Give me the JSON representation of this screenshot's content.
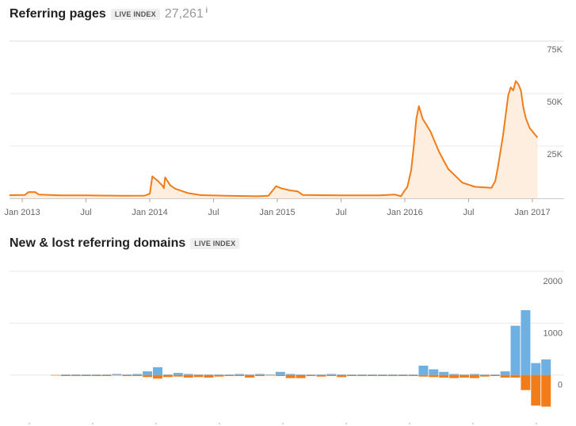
{
  "header1": {
    "title": "Referring pages",
    "badge": "LIVE INDEX",
    "count": "27,261",
    "info": "i"
  },
  "header2": {
    "title": "New & lost referring domains",
    "badge": "LIVE INDEX"
  },
  "colors": {
    "line": "#f07c1a",
    "area": "#fdeee0",
    "new": "#6fb0e3",
    "lost": "#f07c1a",
    "grid": "#e8e8e8",
    "tick": "#666666"
  },
  "chart_data": [
    {
      "type": "area",
      "title": "Referring pages",
      "ylim": [
        0,
        75000
      ],
      "yticks": [
        {
          "value": 25000,
          "label": "25K"
        },
        {
          "value": 50000,
          "label": "50K"
        },
        {
          "value": 75000,
          "label": "75K"
        }
      ],
      "xrange": [
        2012.9,
        2017.05
      ],
      "xticks": [
        {
          "value": 2013.0,
          "label": "Jan 2013"
        },
        {
          "value": 2013.5,
          "label": "Jul"
        },
        {
          "value": 2014.0,
          "label": "Jan 2014"
        },
        {
          "value": 2014.5,
          "label": "Jul"
        },
        {
          "value": 2015.0,
          "label": "Jan 2015"
        },
        {
          "value": 2015.5,
          "label": "Jul"
        },
        {
          "value": 2016.0,
          "label": "Jan 2016"
        },
        {
          "value": 2016.5,
          "label": "Jul"
        },
        {
          "value": 2017.0,
          "label": "Jan 2017"
        }
      ],
      "points": [
        [
          2012.9,
          1500
        ],
        [
          2013.02,
          1600
        ],
        [
          2013.05,
          3000
        ],
        [
          2013.1,
          3000
        ],
        [
          2013.13,
          1800
        ],
        [
          2013.3,
          1400
        ],
        [
          2013.5,
          1400
        ],
        [
          2013.8,
          1200
        ],
        [
          2013.96,
          1300
        ],
        [
          2014.0,
          2200
        ],
        [
          2014.02,
          10500
        ],
        [
          2014.06,
          8500
        ],
        [
          2014.1,
          6000
        ],
        [
          2014.11,
          4800
        ],
        [
          2014.12,
          10000
        ],
        [
          2014.16,
          6200
        ],
        [
          2014.2,
          4600
        ],
        [
          2014.3,
          2500
        ],
        [
          2014.4,
          1500
        ],
        [
          2014.6,
          1200
        ],
        [
          2014.85,
          1000
        ],
        [
          2014.93,
          1200
        ],
        [
          2014.97,
          4200
        ],
        [
          2014.99,
          5800
        ],
        [
          2015.03,
          4800
        ],
        [
          2015.1,
          3800
        ],
        [
          2015.16,
          3300
        ],
        [
          2015.2,
          1600
        ],
        [
          2015.5,
          1400
        ],
        [
          2015.8,
          1400
        ],
        [
          2015.92,
          1800
        ],
        [
          2015.97,
          1000
        ],
        [
          2015.99,
          3000
        ],
        [
          2016.02,
          5500
        ],
        [
          2016.05,
          13500
        ],
        [
          2016.07,
          25000
        ],
        [
          2016.09,
          38000
        ],
        [
          2016.11,
          44000
        ],
        [
          2016.14,
          38000
        ],
        [
          2016.2,
          32000
        ],
        [
          2016.27,
          22000
        ],
        [
          2016.34,
          14000
        ],
        [
          2016.4,
          10500
        ],
        [
          2016.45,
          7500
        ],
        [
          2016.55,
          5500
        ],
        [
          2016.68,
          5000
        ],
        [
          2016.71,
          8500
        ],
        [
          2016.73,
          15000
        ],
        [
          2016.77,
          30000
        ],
        [
          2016.81,
          49000
        ],
        [
          2016.83,
          53000
        ],
        [
          2016.85,
          51500
        ],
        [
          2016.87,
          56000
        ],
        [
          2016.89,
          54500
        ],
        [
          2016.91,
          51500
        ],
        [
          2016.93,
          43000
        ],
        [
          2016.95,
          38000
        ],
        [
          2016.98,
          33500
        ],
        [
          2017.02,
          30500
        ],
        [
          2017.04,
          29000
        ]
      ]
    },
    {
      "type": "bar",
      "title": "New & lost referring domains",
      "ylim": [
        -800,
        2000
      ],
      "yticks": [
        {
          "value": 0,
          "label": "0"
        },
        {
          "value": 1000,
          "label": "1000"
        },
        {
          "value": 2000,
          "label": "2000"
        }
      ],
      "series": [
        {
          "name": "New",
          "values": [
            0,
            10,
            10,
            10,
            10,
            10,
            20,
            10,
            20,
            70,
            150,
            10,
            40,
            20,
            10,
            10,
            10,
            10,
            20,
            10,
            20,
            10,
            60,
            20,
            10,
            10,
            10,
            20,
            10,
            10,
            10,
            10,
            10,
            10,
            10,
            10,
            180,
            110,
            60,
            20,
            10,
            20,
            10,
            10,
            70,
            950,
            1250,
            230,
            300
          ]
        },
        {
          "name": "Lost",
          "values": [
            -10,
            -20,
            -20,
            -20,
            -20,
            -20,
            -10,
            -20,
            -20,
            -40,
            -70,
            -40,
            -30,
            -50,
            -40,
            -50,
            -30,
            -20,
            -20,
            -50,
            -20,
            -10,
            -20,
            -60,
            -60,
            -20,
            -30,
            -20,
            -40,
            -20,
            -20,
            -20,
            -20,
            -20,
            -20,
            -20,
            -30,
            -40,
            -50,
            -60,
            -50,
            -60,
            -30,
            -20,
            -50,
            -50,
            -290,
            -590,
            -610
          ]
        }
      ]
    }
  ]
}
